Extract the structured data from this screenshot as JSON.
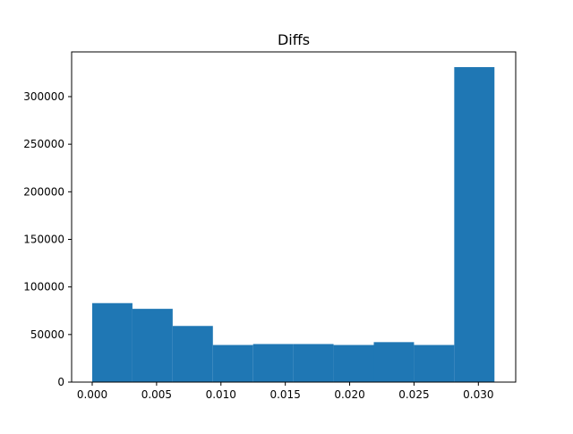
{
  "chart_data": {
    "type": "bar",
    "subtype": "histogram",
    "title": "Diffs",
    "xlabel": "",
    "ylabel": "",
    "bin_edges": [
      0.0,
      0.003125,
      0.00625,
      0.009375,
      0.0125,
      0.015625,
      0.01875,
      0.021875,
      0.025,
      0.028125,
      0.03125
    ],
    "values": [
      83000,
      77000,
      59000,
      39000,
      40000,
      40000,
      39000,
      42000,
      39000,
      331000
    ],
    "xlim": [
      -0.0016,
      0.0329
    ],
    "ylim": [
      0,
      347000
    ],
    "xticks": [
      0.0,
      0.005,
      0.01,
      0.015,
      0.02,
      0.025,
      0.03
    ],
    "xtick_labels": [
      "0.000",
      "0.005",
      "0.010",
      "0.015",
      "0.020",
      "0.025",
      "0.030"
    ],
    "yticks": [
      0,
      50000,
      100000,
      150000,
      200000,
      250000,
      300000
    ],
    "ytick_labels": [
      "0",
      "50000",
      "100000",
      "150000",
      "200000",
      "250000",
      "300000"
    ],
    "grid": false,
    "legend": "none",
    "bar_color": "#1f77b4"
  }
}
